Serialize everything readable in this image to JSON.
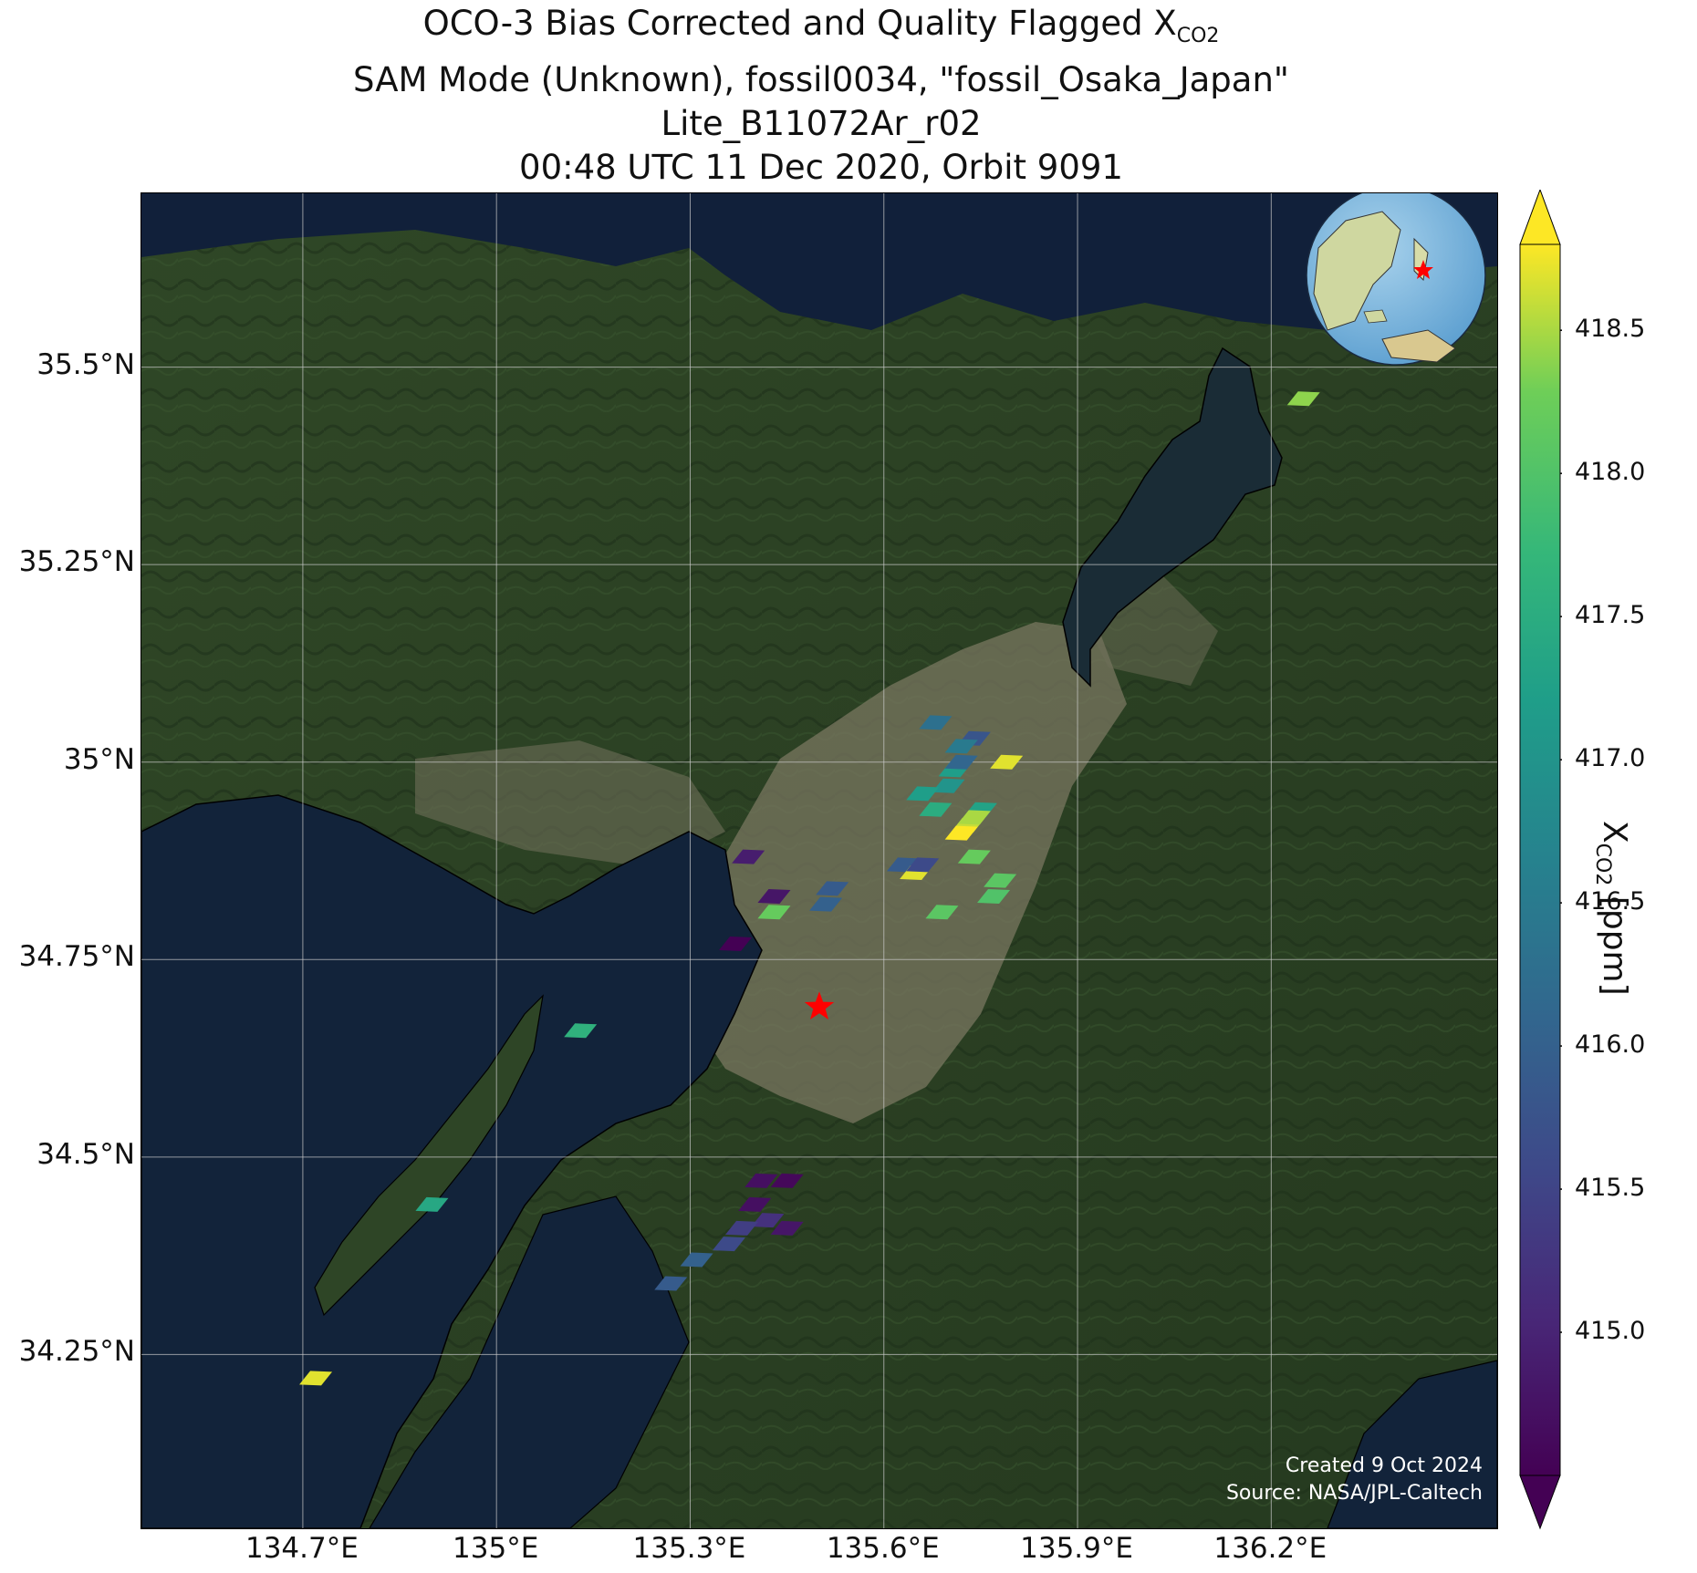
{
  "title": {
    "line1_prefix": "OCO-3 Bias Corrected and Quality Flagged X",
    "line1_sub": "CO2",
    "line2": "SAM Mode (Unknown), fossil0034, \"fossil_Osaka_Japan\"",
    "line3": "Lite_B11072Ar_r02",
    "line4": "00:48 UTC 11 Dec 2020, Orbit 9091"
  },
  "map": {
    "lon_range": [
      134.45,
      136.55
    ],
    "lat_range": [
      34.03,
      35.72
    ],
    "lat_ticks": [
      "35.5°N",
      "35.25°N",
      "35°N",
      "34.75°N",
      "34.5°N",
      "34.25°N"
    ],
    "lat_values": [
      35.5,
      35.25,
      35.0,
      34.75,
      34.5,
      34.25
    ],
    "lon_ticks": [
      "134.7°E",
      "135°E",
      "135.3°E",
      "135.6°E",
      "135.9°E",
      "136.2°E"
    ],
    "lon_values": [
      134.7,
      135.0,
      135.3,
      135.6,
      135.9,
      136.2
    ],
    "target_marker": {
      "lon": 135.5,
      "lat": 34.69,
      "symbol": "star",
      "color": "#ff0000"
    },
    "inset_globe": "globe-inset-east-asia"
  },
  "chart_data": {
    "type": "scatter",
    "title": "OCO-3 Bias Corrected and Quality Flagged XCO2",
    "xlabel": "",
    "ylabel": "",
    "x": [
      135.68,
      135.74,
      135.72,
      135.79,
      135.7,
      135.71,
      135.72,
      135.66,
      135.68,
      135.75,
      135.73,
      135.72,
      135.74,
      135.63,
      135.65,
      135.66,
      135.74,
      135.77,
      135.78,
      135.69,
      135.39,
      135.43,
      135.43,
      135.52,
      135.51,
      135.37,
      135.13,
      134.9,
      134.72,
      135.41,
      135.45,
      135.4,
      135.42,
      135.45,
      135.38,
      135.36,
      135.31,
      135.27,
      136.25
    ],
    "y": [
      35.05,
      35.03,
      35.02,
      35.0,
      34.97,
      34.99,
      35.0,
      34.96,
      34.94,
      34.94,
      34.92,
      34.91,
      34.93,
      34.87,
      34.86,
      34.87,
      34.88,
      34.83,
      34.85,
      34.81,
      34.88,
      34.83,
      34.81,
      34.84,
      34.82,
      34.77,
      34.66,
      34.44,
      34.22,
      34.47,
      34.47,
      34.44,
      34.42,
      34.41,
      34.41,
      34.39,
      34.37,
      34.34,
      35.46
    ],
    "values": [
      416.3,
      415.8,
      416.5,
      418.7,
      417.0,
      417.2,
      416.1,
      417.2,
      417.5,
      417.3,
      418.6,
      418.8,
      418.5,
      415.9,
      418.7,
      415.6,
      418.2,
      418.0,
      418.1,
      418.1,
      414.9,
      414.8,
      418.2,
      415.9,
      416.0,
      414.5,
      417.6,
      417.4,
      418.7,
      414.7,
      414.6,
      414.7,
      415.2,
      414.8,
      415.4,
      415.6,
      416.0,
      415.9,
      418.4
    ],
    "colorbar": {
      "label_prefix": "X",
      "label_sub": "CO2",
      "label_suffix": " [ppm]",
      "ticks": [
        "418.5",
        "418.0",
        "417.5",
        "417.0",
        "416.5",
        "416.0",
        "415.5",
        "415.0"
      ],
      "tick_values": [
        418.5,
        418.0,
        417.5,
        417.0,
        416.5,
        416.0,
        415.5,
        415.0
      ],
      "range": [
        414.5,
        418.8
      ],
      "colormap": "viridis",
      "extend": "both"
    }
  },
  "credit": {
    "line1": "Created 9 Oct 2024",
    "line2": "Source: NASA/JPL-Caltech"
  }
}
